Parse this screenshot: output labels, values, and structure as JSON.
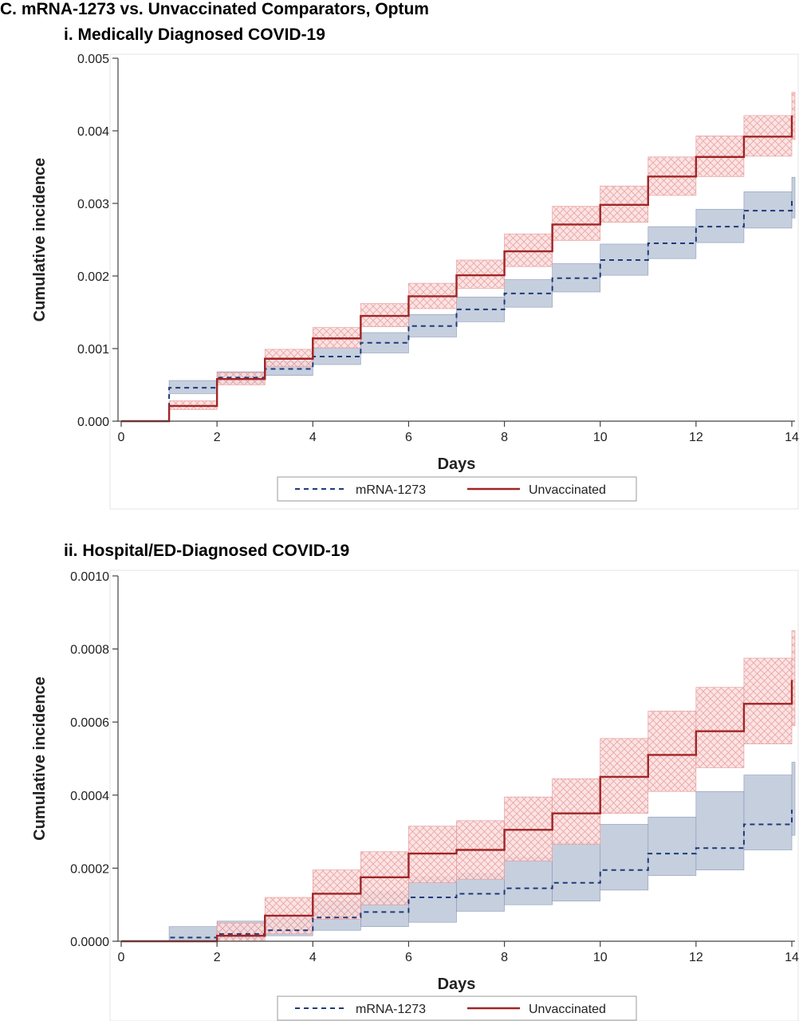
{
  "figure_title": "C. mRNA-1273 vs. Unvaccinated Comparators, Optum",
  "colors": {
    "vaccinated": "#1f3a7a",
    "unvaccinated": "#a02525",
    "vaccinated_band": "#b3bfd3",
    "unvaccinated_band": "#f0a6a6"
  },
  "chart_data": [
    {
      "type": "line",
      "title": "i. Medically Diagnosed COVID-19",
      "xlabel": "Days",
      "ylabel": "Cumulative incidence",
      "xlim": [
        0,
        14
      ],
      "ylim": [
        0,
        0.005
      ],
      "xticks": [
        0,
        2,
        4,
        6,
        8,
        10,
        12,
        14
      ],
      "yticks": [
        "0.000",
        "0.001",
        "0.002",
        "0.003",
        "0.004",
        "0.005"
      ],
      "step": true,
      "legend": "bottom",
      "x": [
        0,
        1,
        2,
        3,
        4,
        5,
        6,
        7,
        8,
        9,
        10,
        11,
        12,
        13,
        14
      ],
      "series": [
        {
          "name": "mRNA-1273",
          "style": "dashed",
          "values": [
            0,
            0.00046,
            0.0006,
            0.00072,
            0.00089,
            0.00108,
            0.00131,
            0.00154,
            0.00176,
            0.00197,
            0.00222,
            0.00245,
            0.00268,
            0.0029,
            0.00307
          ],
          "lower": [
            0,
            0.00038,
            0.00052,
            0.00063,
            0.00078,
            0.00094,
            0.00116,
            0.00137,
            0.00157,
            0.00178,
            0.00201,
            0.00224,
            0.00246,
            0.00266,
            0.0028
          ],
          "upper": [
            0,
            0.00056,
            0.00068,
            0.00082,
            0.00101,
            0.00122,
            0.00147,
            0.00171,
            0.00195,
            0.00217,
            0.00244,
            0.00268,
            0.00292,
            0.00316,
            0.00336
          ]
        },
        {
          "name": "Unvaccinated",
          "style": "solid",
          "values": [
            0,
            0.00021,
            0.00058,
            0.00086,
            0.00114,
            0.00145,
            0.00172,
            0.00201,
            0.00234,
            0.00271,
            0.00298,
            0.00337,
            0.00364,
            0.00392,
            0.00421
          ],
          "lower": [
            0,
            0.00016,
            0.0005,
            0.00075,
            0.00101,
            0.0013,
            0.00155,
            0.00183,
            0.00213,
            0.00249,
            0.00274,
            0.00311,
            0.00337,
            0.00365,
            0.00388
          ],
          "upper": [
            0,
            0.00028,
            0.00067,
            0.00099,
            0.00129,
            0.00162,
            0.0019,
            0.00222,
            0.00258,
            0.00296,
            0.00324,
            0.00364,
            0.00393,
            0.00421,
            0.00453
          ]
        }
      ]
    },
    {
      "type": "line",
      "title": "ii. Hospital/ED-Diagnosed COVID-19",
      "xlabel": "Days",
      "ylabel": "Cumulative incidence",
      "xlim": [
        0,
        14
      ],
      "ylim": [
        0,
        0.001
      ],
      "xticks": [
        0,
        2,
        4,
        6,
        8,
        10,
        12,
        14
      ],
      "yticks": [
        "0.0000",
        "0.0002",
        "0.0004",
        "0.0006",
        "0.0008",
        "0.0010"
      ],
      "step": true,
      "legend": "bottom",
      "x": [
        0,
        1,
        2,
        3,
        4,
        5,
        6,
        7,
        8,
        9,
        10,
        11,
        12,
        13,
        14
      ],
      "series": [
        {
          "name": "mRNA-1273",
          "style": "dashed",
          "values": [
            0,
            1e-05,
            2e-05,
            3e-05,
            6.5e-05,
            8e-05,
            0.00012,
            0.00013,
            0.000145,
            0.00016,
            0.000195,
            0.00024,
            0.000255,
            0.00032,
            0.00036
          ],
          "lower": [
            0,
            0.0,
            5e-06,
            1.5e-05,
            3e-05,
            4e-05,
            5.2e-05,
            8.2e-05,
            0.0001,
            0.00011,
            0.00014,
            0.00018,
            0.000195,
            0.00025,
            0.00029
          ],
          "upper": [
            0,
            4e-05,
            5.5e-05,
            7e-05,
            0.00011,
            0.000135,
            0.000175,
            0.000185,
            0.00023,
            0.00027,
            0.00032,
            0.00034,
            0.00041,
            0.000455,
            0.00049
          ]
        },
        {
          "name": "Unvaccinated",
          "style": "solid",
          "values": [
            0,
            0.0,
            1.5e-05,
            7e-05,
            0.00013,
            0.000175,
            0.00024,
            0.00025,
            0.000305,
            0.00035,
            0.00045,
            0.00051,
            0.000575,
            0.00065,
            0.000715
          ],
          "lower": [
            0,
            0.0,
            0.0,
            2e-05,
            6e-05,
            0.0001,
            0.00016,
            0.00017,
            0.00022,
            0.000265,
            0.00035,
            0.00041,
            0.000475,
            0.00054,
            0.00059
          ],
          "upper": [
            0,
            0.0,
            5e-05,
            0.00012,
            0.000195,
            0.000245,
            0.000315,
            0.00033,
            0.000395,
            0.000445,
            0.000555,
            0.00063,
            0.000695,
            0.000775,
            0.00085
          ]
        }
      ]
    }
  ]
}
